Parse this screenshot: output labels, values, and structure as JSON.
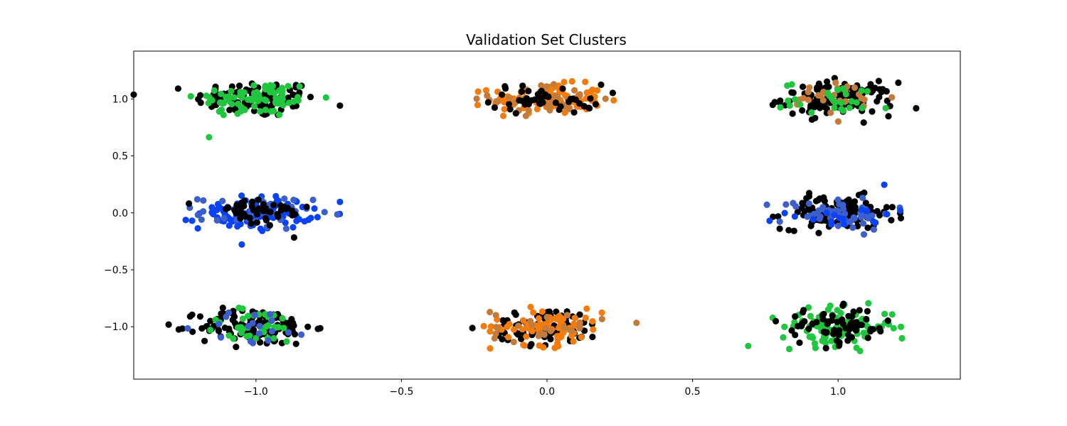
{
  "chart_data": {
    "type": "scatter",
    "title": "Validation Set Clusters",
    "xlabel": "",
    "ylabel": "",
    "xlim": [
      -1.42,
      1.42
    ],
    "ylim": [
      -1.46,
      1.42
    ],
    "grid": false,
    "legend": "none",
    "xticks": [
      -1.0,
      -0.5,
      0.0,
      0.5,
      1.0
    ],
    "xtick_labels": [
      "−1.0",
      "−0.5",
      "0.0",
      "0.5",
      "1.0"
    ],
    "yticks": [
      1.0,
      0.5,
      0.0,
      -0.5,
      -1.0
    ],
    "ytick_labels": [
      "1.0",
      "0.5",
      "0.0",
      "−0.5",
      "−1.0"
    ],
    "colors": {
      "black": "#000000",
      "green": "#1fc63e",
      "orange": "#f57c0c",
      "tan": "#c47b3a",
      "blue": "#0a43f5",
      "steel_blue": "#3d5fcc"
    },
    "clusters": [
      {
        "center": [
          -1.0,
          1.0
        ],
        "approx_points": 180,
        "spread": [
          0.13,
          0.1
        ],
        "colors": {
          "black": 0.55,
          "green": 0.45
        }
      },
      {
        "center": [
          0.0,
          1.0
        ],
        "approx_points": 180,
        "spread": [
          0.12,
          0.08
        ],
        "colors": {
          "orange": 0.55,
          "tan": 0.2,
          "black": 0.25
        }
      },
      {
        "center": [
          1.0,
          1.0
        ],
        "approx_points": 180,
        "spread": [
          0.12,
          0.09
        ],
        "colors": {
          "black": 0.7,
          "tan": 0.15,
          "green": 0.15
        }
      },
      {
        "center": [
          -1.0,
          0.0
        ],
        "approx_points": 180,
        "spread": [
          0.12,
          0.09
        ],
        "colors": {
          "blue": 0.55,
          "steel_blue": 0.2,
          "black": 0.25
        }
      },
      {
        "center": [
          1.0,
          0.0
        ],
        "approx_points": 180,
        "spread": [
          0.12,
          0.09
        ],
        "colors": {
          "black": 0.6,
          "steel_blue": 0.3,
          "blue": 0.1
        }
      },
      {
        "center": [
          -1.0,
          -1.0
        ],
        "approx_points": 180,
        "spread": [
          0.12,
          0.1
        ],
        "colors": {
          "black": 0.7,
          "green": 0.2,
          "steel_blue": 0.1
        }
      },
      {
        "center": [
          0.0,
          -1.0
        ],
        "approx_points": 180,
        "spread": [
          0.12,
          0.1
        ],
        "colors": {
          "black": 0.45,
          "orange": 0.4,
          "tan": 0.15
        }
      },
      {
        "center": [
          1.0,
          -1.0
        ],
        "approx_points": 180,
        "spread": [
          0.12,
          0.1
        ],
        "colors": {
          "green": 0.6,
          "black": 0.4
        }
      }
    ]
  }
}
